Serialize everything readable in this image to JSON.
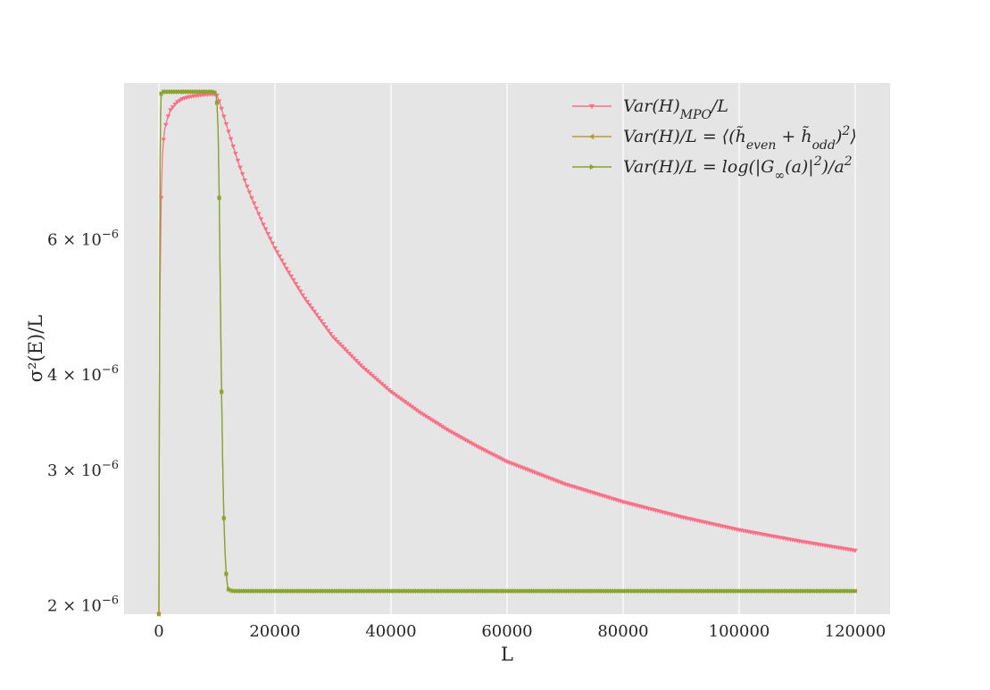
{
  "chart_data": {
    "type": "line",
    "title": "",
    "xlabel": "L",
    "ylabel": "σ²(E)/L",
    "x_ticks": [
      {
        "value": 0,
        "label": "0"
      },
      {
        "value": 20000,
        "label": "20000"
      },
      {
        "value": 40000,
        "label": "40000"
      },
      {
        "value": 60000,
        "label": "60000"
      },
      {
        "value": 80000,
        "label": "80000"
      },
      {
        "value": 100000,
        "label": "100000"
      },
      {
        "value": 120000,
        "label": "120000"
      }
    ],
    "y_ticks": [
      {
        "value": 2e-06,
        "mantissa": "2",
        "exponent": "−6"
      },
      {
        "value": 3e-06,
        "mantissa": "3",
        "exponent": "−6"
      },
      {
        "value": 4e-06,
        "mantissa": "4",
        "exponent": "−6"
      },
      {
        "value": 6e-06,
        "mantissa": "6",
        "exponent": "−6"
      }
    ],
    "xlim": [
      -6000,
      126000
    ],
    "ylim": [
      1.95e-06,
      9.6e-06
    ],
    "y_scale": "log",
    "grid": true,
    "background": "#e5e5e5",
    "legend_position": "top-right",
    "series": [
      {
        "name": "Var(H)_MPO/L",
        "legend_parts": [
          [
            "Var(H)",
            ""
          ],
          [
            "MPO",
            "sub"
          ],
          [
            "/L",
            ""
          ]
        ],
        "color": "#f77189",
        "marker": "triangle-down",
        "marker_step": 400,
        "x": [
          0,
          100,
          200,
          400,
          600,
          800,
          1000,
          1500,
          2000,
          3000,
          4000,
          5000,
          6000,
          7000,
          8000,
          9000,
          9600,
          10000,
          10500,
          11000,
          12000,
          13000,
          14000,
          15000,
          16000,
          18000,
          20000,
          22000,
          25000,
          28000,
          30000,
          35000,
          40000,
          45000,
          50000,
          55000,
          60000,
          70000,
          80000,
          90000,
          100000,
          110000,
          120000
        ],
        "y": [
          1.95e-06,
          4.3e-06,
          5.2e-06,
          6.8e-06,
          7.7e-06,
          8.1e-06,
          8.35e-06,
          8.65e-06,
          8.85e-06,
          9.05e-06,
          9.15e-06,
          9.2e-06,
          9.23e-06,
          9.25e-06,
          9.27e-06,
          9.28e-06,
          9.28e-06,
          9.25e-06,
          9.05e-06,
          8.78e-06,
          8.3e-06,
          7.85e-06,
          7.45e-06,
          7.1e-06,
          6.8e-06,
          6.28e-06,
          5.85e-06,
          5.5e-06,
          5.05e-06,
          4.7e-06,
          4.48e-06,
          4.1e-06,
          3.8e-06,
          3.57e-06,
          3.38e-06,
          3.22e-06,
          3.08e-06,
          2.88e-06,
          2.73e-06,
          2.61e-06,
          2.51e-06,
          2.43e-06,
          2.36e-06
        ]
      },
      {
        "name": "Var(H)/L = ⟨(h̃_even + h̃_odd)²⟩",
        "legend_parts": [
          [
            "Var(H)/L = ⟨(h̃",
            ""
          ],
          [
            "even",
            "sub"
          ],
          [
            " + h̃",
            ""
          ],
          [
            "odd",
            "sub"
          ],
          [
            ")",
            ""
          ],
          [
            "2",
            "sup"
          ],
          [
            "⟩",
            ""
          ]
        ],
        "color": "#b59e2e",
        "marker": "triangle-left",
        "marker_step": 400,
        "x": [
          0,
          50,
          200,
          300,
          400,
          600,
          800,
          1000,
          2000,
          4000,
          6000,
          8000,
          9000,
          9500,
          9800,
          10000,
          10200,
          10400,
          10600,
          10800,
          11000,
          11200,
          11400,
          11600,
          11800,
          12000,
          12300,
          12600,
          13000,
          15000,
          20000,
          40000,
          60000,
          80000,
          100000,
          120000
        ],
        "y": [
          1.95e-06,
          3e-06,
          7.5e-06,
          8.8e-06,
          9.3e-06,
          9.35e-06,
          9.35e-06,
          9.35e-06,
          9.35e-06,
          9.35e-06,
          9.35e-06,
          9.35e-06,
          9.35e-06,
          9.35e-06,
          9.3e-06,
          9.05e-06,
          8.35e-06,
          6.8e-06,
          5e-06,
          3.8e-06,
          3.05e-06,
          2.6e-06,
          2.35e-06,
          2.2e-06,
          2.13e-06,
          2.1e-06,
          2.095e-06,
          2.09e-06,
          2.09e-06,
          2.09e-06,
          2.09e-06,
          2.09e-06,
          2.09e-06,
          2.09e-06,
          2.09e-06,
          2.09e-06
        ]
      },
      {
        "name": "Var(H)/L = log(|G_∞(a)|²)/a²",
        "legend_parts": [
          [
            "Var(H)/L = log(|G",
            ""
          ],
          [
            "∞",
            "sub"
          ],
          [
            "(a)|",
            ""
          ],
          [
            "2",
            "sup"
          ],
          [
            ")/a",
            ""
          ],
          [
            "2",
            "sup"
          ]
        ],
        "color": "#86a42f",
        "marker": "triangle-right",
        "marker_step": 400,
        "x": [
          0,
          50,
          200,
          300,
          400,
          600,
          800,
          1000,
          2000,
          4000,
          6000,
          8000,
          9000,
          9500,
          9800,
          10000,
          10200,
          10400,
          10600,
          10800,
          11000,
          11200,
          11400,
          11600,
          11800,
          12000,
          12300,
          12600,
          13000,
          15000,
          20000,
          40000,
          60000,
          80000,
          100000,
          120000
        ],
        "y": [
          1.95e-06,
          3e-06,
          7.5e-06,
          8.8e-06,
          9.3e-06,
          9.35e-06,
          9.35e-06,
          9.35e-06,
          9.35e-06,
          9.35e-06,
          9.35e-06,
          9.35e-06,
          9.35e-06,
          9.35e-06,
          9.3e-06,
          9.05e-06,
          8.35e-06,
          6.8e-06,
          5e-06,
          3.8e-06,
          3.05e-06,
          2.6e-06,
          2.35e-06,
          2.2e-06,
          2.13e-06,
          2.1e-06,
          2.095e-06,
          2.09e-06,
          2.09e-06,
          2.09e-06,
          2.09e-06,
          2.09e-06,
          2.09e-06,
          2.09e-06,
          2.09e-06,
          2.09e-06
        ]
      }
    ]
  }
}
